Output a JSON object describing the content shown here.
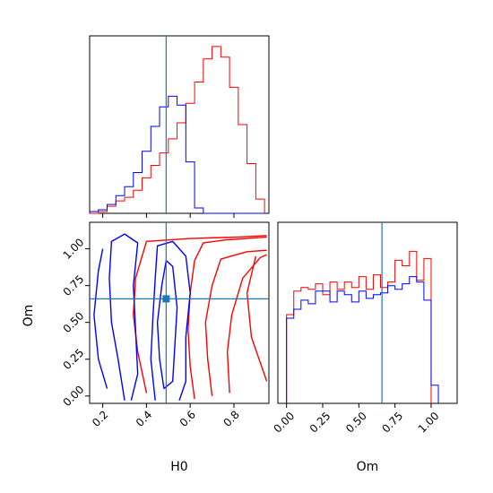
{
  "chart_data": {
    "type": "corner",
    "parameters": [
      "H0",
      "Om"
    ],
    "truth": {
      "H0": 0.49,
      "Om": 0.66,
      "color": "#1f77b4"
    },
    "colors": {
      "red_series": "#ff0000",
      "blue_series": "#0000ff",
      "truth": "#1f77b4"
    },
    "panels": [
      {
        "id": "H0-marginal",
        "type": "histogram",
        "xlim": [
          0.14,
          0.96
        ],
        "ylim": [
          0,
          1.0
        ],
        "show_y_ticks": false,
        "series": [
          {
            "color": "#ff0000",
            "bins": [
              0.14,
              0.18,
              0.22,
              0.26,
              0.3,
              0.34,
              0.38,
              0.42,
              0.46,
              0.5,
              0.54,
              0.58,
              0.62,
              0.66,
              0.7,
              0.74,
              0.78,
              0.82,
              0.86,
              0.9,
              0.94
            ],
            "counts": [
              0.0,
              0.01,
              0.04,
              0.07,
              0.09,
              0.13,
              0.2,
              0.27,
              0.34,
              0.42,
              0.51,
              0.62,
              0.74,
              0.87,
              0.94,
              0.88,
              0.71,
              0.5,
              0.28,
              0.08
            ]
          },
          {
            "color": "#0000ff",
            "bins": [
              0.14,
              0.18,
              0.22,
              0.26,
              0.3,
              0.34,
              0.38,
              0.42,
              0.46,
              0.5,
              0.54,
              0.58,
              0.62,
              0.66,
              0.7,
              0.74,
              0.78,
              0.82,
              0.86,
              0.9,
              0.94
            ],
            "counts": [
              0.01,
              0.02,
              0.05,
              0.1,
              0.15,
              0.23,
              0.35,
              0.49,
              0.6,
              0.66,
              0.61,
              0.29,
              0.03,
              0.0,
              0.0,
              0.0,
              0.0,
              0.0,
              0.0,
              0.0
            ]
          }
        ]
      },
      {
        "id": "H0-Om-contour",
        "type": "contour",
        "x_param": "H0",
        "y_param": "Om",
        "xlim": [
          0.14,
          0.96
        ],
        "ylim": [
          -0.05,
          1.18
        ],
        "truth_point": [
          0.49,
          0.66
        ],
        "series": [
          {
            "color": "#ff0000",
            "contours": [
              [
                [
                  0.62,
                  -0.02
                ],
                [
                  0.6,
                  0.2
                ],
                [
                  0.59,
                  0.45
                ],
                [
                  0.6,
                  0.7
                ],
                [
                  0.62,
                  0.92
                ],
                [
                  0.66,
                  1.04
                ],
                [
                  0.76,
                  1.06
                ],
                [
                  0.95,
                  1.08
                ]
              ],
              [
                [
                  0.7,
                  0.0
                ],
                [
                  0.68,
                  0.25
                ],
                [
                  0.67,
                  0.5
                ],
                [
                  0.7,
                  0.75
                ],
                [
                  0.74,
                  0.93
                ],
                [
                  0.86,
                  0.98
                ],
                [
                  0.95,
                  0.99
                ]
              ],
              [
                [
                  0.78,
                  0.02
                ],
                [
                  0.77,
                  0.3
                ],
                [
                  0.79,
                  0.55
                ],
                [
                  0.84,
                  0.8
                ],
                [
                  0.92,
                  0.94
                ],
                [
                  0.95,
                  0.96
                ]
              ],
              [
                [
                  0.4,
                  0.02
                ],
                [
                  0.36,
                  0.3
                ],
                [
                  0.34,
                  0.55
                ],
                [
                  0.35,
                  0.8
                ],
                [
                  0.4,
                  1.05
                ],
                [
                  0.6,
                  1.07
                ],
                [
                  0.82,
                  1.08
                ],
                [
                  0.95,
                  1.09
                ]
              ],
              [
                [
                  0.95,
                  0.1
                ],
                [
                  0.88,
                  0.4
                ],
                [
                  0.86,
                  0.7
                ],
                [
                  0.9,
                  0.95
                ]
              ]
            ]
          },
          {
            "color": "#0000ff",
            "contours": [
              [
                [
                  0.44,
                  -0.03
                ],
                [
                  0.42,
                  0.25
                ],
                [
                  0.43,
                  0.55
                ],
                [
                  0.44,
                  0.8
                ],
                [
                  0.45,
                  1.02
                ],
                [
                  0.52,
                  1.05
                ],
                [
                  0.58,
                  0.95
                ],
                [
                  0.6,
                  0.7
                ],
                [
                  0.58,
                  0.4
                ],
                [
                  0.58,
                  0.1
                ],
                [
                  0.55,
                  -0.03
                ]
              ],
              [
                [
                  0.48,
                  0.05
                ],
                [
                  0.46,
                  0.25
                ],
                [
                  0.45,
                  0.5
                ],
                [
                  0.47,
                  0.75
                ],
                [
                  0.49,
                  0.92
                ],
                [
                  0.52,
                  0.88
                ],
                [
                  0.54,
                  0.6
                ],
                [
                  0.53,
                  0.35
                ],
                [
                  0.52,
                  0.1
                ],
                [
                  0.48,
                  0.05
                ]
              ],
              [
                [
                  0.3,
                  -0.03
                ],
                [
                  0.27,
                  0.25
                ],
                [
                  0.24,
                  0.5
                ],
                [
                  0.23,
                  0.8
                ],
                [
                  0.24,
                  1.05
                ],
                [
                  0.3,
                  1.1
                ],
                [
                  0.36,
                  1.04
                ],
                [
                  0.34,
                  0.75
                ],
                [
                  0.35,
                  0.45
                ],
                [
                  0.36,
                  0.15
                ],
                [
                  0.33,
                  -0.03
                ]
              ],
              [
                [
                  0.22,
                  0.05
                ],
                [
                  0.18,
                  0.25
                ],
                [
                  0.16,
                  0.55
                ],
                [
                  0.18,
                  0.85
                ],
                [
                  0.2,
                  1.0
                ]
              ]
            ]
          }
        ]
      },
      {
        "id": "Om-marginal",
        "type": "histogram",
        "xlim": [
          -0.06,
          1.18
        ],
        "ylim": [
          0,
          1.0
        ],
        "show_y_ticks": false,
        "series": [
          {
            "color": "#ff0000",
            "bins": [
              0.0,
              0.05,
              0.1,
              0.15,
              0.2,
              0.25,
              0.3,
              0.35,
              0.4,
              0.45,
              0.5,
              0.55,
              0.6,
              0.65,
              0.7,
              0.75,
              0.8,
              0.85,
              0.9,
              0.95,
              1.0
            ],
            "counts": [
              0.49,
              0.62,
              0.64,
              0.63,
              0.66,
              0.6,
              0.67,
              0.63,
              0.67,
              0.64,
              0.7,
              0.63,
              0.71,
              0.64,
              0.67,
              0.79,
              0.76,
              0.84,
              0.68,
              0.8
            ]
          },
          {
            "color": "#0000ff",
            "bins": [
              0.0,
              0.05,
              0.1,
              0.15,
              0.2,
              0.25,
              0.3,
              0.35,
              0.4,
              0.45,
              0.5,
              0.55,
              0.6,
              0.65,
              0.7,
              0.75,
              0.8,
              0.85,
              0.9,
              0.95,
              1.0,
              1.05
            ],
            "counts": [
              0.47,
              0.52,
              0.57,
              0.55,
              0.62,
              0.62,
              0.56,
              0.62,
              0.6,
              0.56,
              0.62,
              0.58,
              0.6,
              0.61,
              0.65,
              0.63,
              0.66,
              0.7,
              0.67,
              0.57,
              0.1
            ]
          }
        ]
      }
    ],
    "axes": {
      "H0": {
        "label": "H0",
        "ticks": [
          0.2,
          0.4,
          0.6,
          0.8
        ],
        "tick_labels": [
          "0.2",
          "0.4",
          "0.6",
          "0.8"
        ]
      },
      "Om_y": {
        "label": "Om",
        "ticks": [
          0.0,
          0.25,
          0.5,
          0.75,
          1.0
        ],
        "tick_labels": [
          "0.00",
          "0.25",
          "0.50",
          "0.75",
          "1.00"
        ]
      },
      "Om_x": {
        "label": "Om",
        "ticks": [
          0.0,
          0.25,
          0.5,
          0.75,
          1.0
        ],
        "tick_labels": [
          "0.00",
          "0.25",
          "0.50",
          "0.75",
          "1.00"
        ]
      }
    }
  }
}
